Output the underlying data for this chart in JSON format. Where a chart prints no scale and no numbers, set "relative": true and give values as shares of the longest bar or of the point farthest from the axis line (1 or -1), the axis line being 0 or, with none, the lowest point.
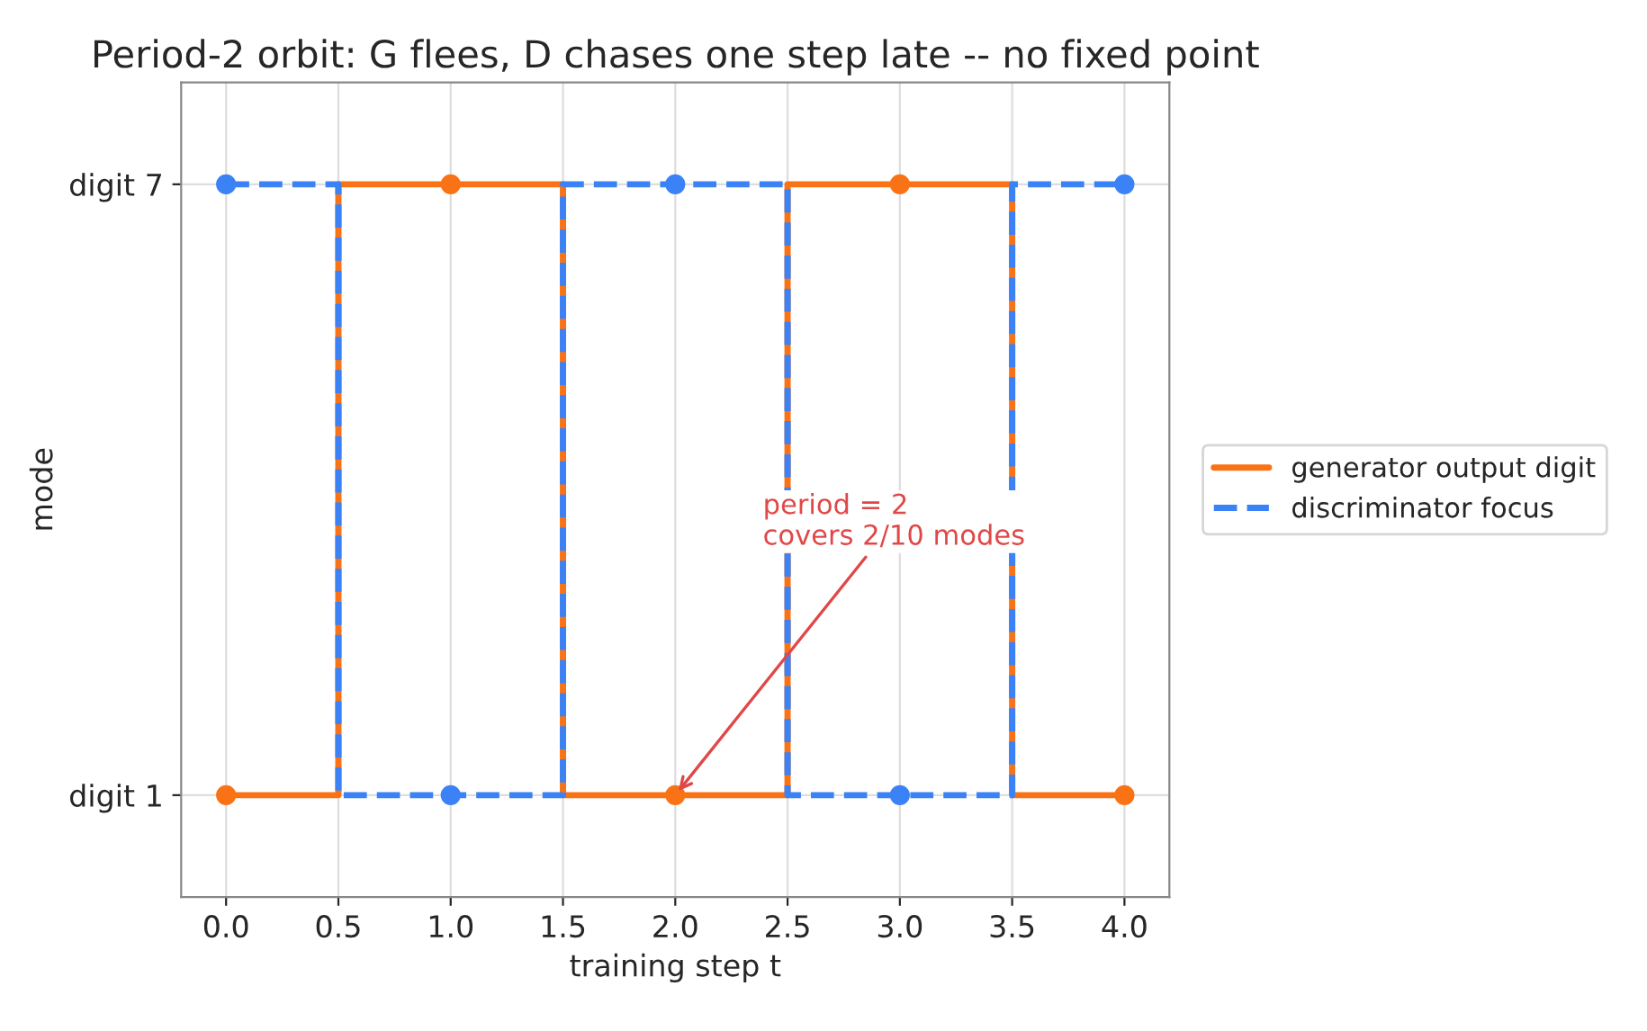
{
  "chart_data": {
    "type": "step",
    "title": "Period-2 orbit: G flees, D chases one step late -- no fixed point",
    "xlabel": "training step t",
    "ylabel": "mode",
    "x": [
      0,
      1,
      2,
      3,
      4
    ],
    "series": [
      {
        "name": "generator output digit",
        "color": "#f97316",
        "values": [
          0,
          1,
          0,
          1,
          0
        ],
        "line_style": "solid"
      },
      {
        "name": "discriminator focus",
        "color": "#3b82f6",
        "values": [
          1,
          0,
          1,
          0,
          1
        ],
        "line_style": "dashed"
      }
    ],
    "xlim": [
      -0.2,
      4.2
    ],
    "xticks": [
      {
        "value": 0,
        "label": "0.0"
      },
      {
        "value": 0.5,
        "label": "0.5"
      },
      {
        "value": 1,
        "label": "1.0"
      },
      {
        "value": 1.5,
        "label": "1.5"
      },
      {
        "value": 2,
        "label": "2.0"
      },
      {
        "value": 2.5,
        "label": "2.5"
      },
      {
        "value": 3,
        "label": "3.0"
      },
      {
        "value": 3.5,
        "label": "3.5"
      },
      {
        "value": 4,
        "label": "4.0"
      }
    ],
    "relative": true,
    "y_categories": [
      "digit 7",
      "digit 1"
    ],
    "annotations": [
      {
        "text": "period = 2\ncovers 2/10 modes",
        "x": 2,
        "y": 0
      }
    ],
    "grid": true,
    "legend": "right",
    "marker": "circle"
  }
}
